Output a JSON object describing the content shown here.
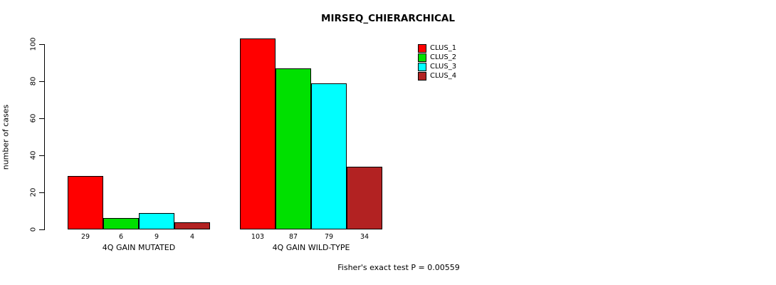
{
  "title": "MIRSEQ_CHIERARCHICAL",
  "footer": "Fisher's exact test P = 0.00559",
  "chart_data": {
    "type": "bar",
    "title": "MIRSEQ_CHIERARCHICAL",
    "xlabel": "",
    "ylabel": "number of cases",
    "categories": [
      "4Q GAIN MUTATED",
      "4Q GAIN WILD-TYPE"
    ],
    "series": [
      {
        "name": "CLUS_1",
        "color": "#ff0000",
        "values": [
          29,
          103
        ]
      },
      {
        "name": "CLUS_2",
        "color": "#00e000",
        "values": [
          6,
          87
        ]
      },
      {
        "name": "CLUS_3",
        "color": "#00ffff",
        "values": [
          9,
          79
        ]
      },
      {
        "name": "CLUS_4",
        "color": "#b22222",
        "values": [
          4,
          34
        ]
      }
    ],
    "yticks": [
      0,
      20,
      40,
      60,
      80,
      100
    ],
    "ylim": [
      0,
      107
    ],
    "bar_value_labels": [
      [
        "29",
        "6",
        "9",
        "4"
      ],
      [
        "103",
        "87",
        "79",
        "34"
      ]
    ],
    "grid": false,
    "legend_position": "top-right",
    "annotation": "Fisher's exact test P = 0.00559"
  }
}
